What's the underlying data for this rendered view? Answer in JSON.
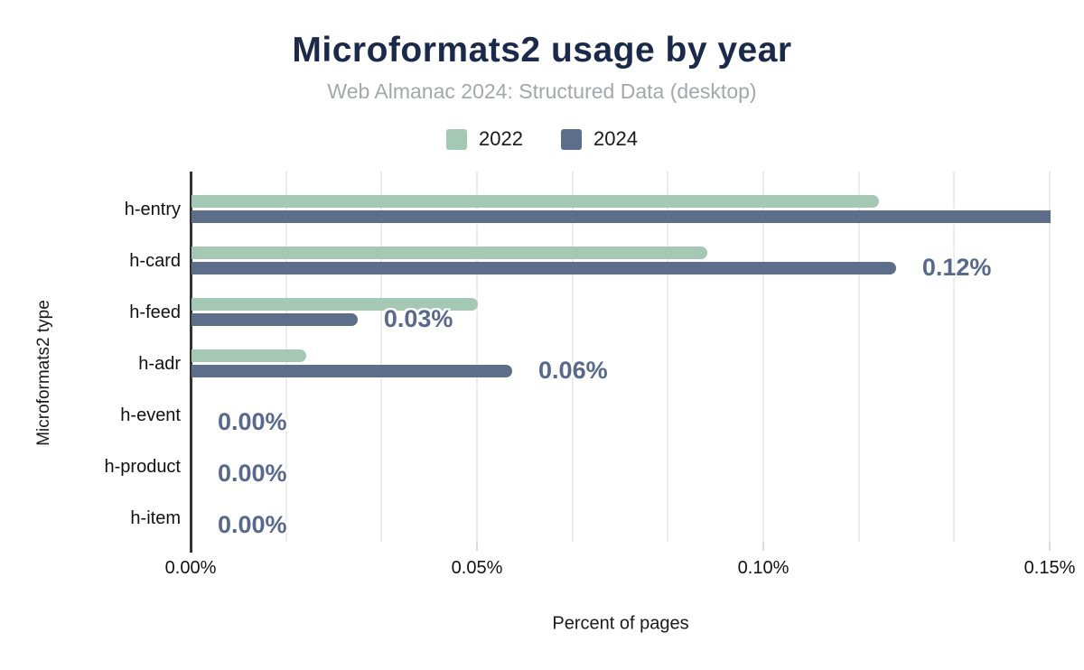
{
  "chart_data": {
    "type": "bar",
    "orientation": "horizontal",
    "title": "Microformats2 usage by year",
    "subtitle": "Web Almanac 2024: Structured Data (desktop)",
    "xlabel": "Percent of pages",
    "ylabel": "Microformats2 type",
    "categories": [
      "h-entry",
      "h-card",
      "h-feed",
      "h-adr",
      "h-event",
      "h-product",
      "h-item"
    ],
    "series": [
      {
        "name": "2022",
        "color": "#a5c8b4",
        "values": [
          0.12,
          0.09,
          0.05,
          0.02,
          0,
          0,
          0
        ]
      },
      {
        "name": "2024",
        "color": "#5c6e8a",
        "values": [
          0.15,
          0.123,
          0.029,
          0.056,
          0,
          0,
          0
        ]
      }
    ],
    "annotations": [
      {
        "category": "h-card",
        "series": "2024",
        "label": "0.12%"
      },
      {
        "category": "h-feed",
        "series": "2024",
        "label": "0.03%"
      },
      {
        "category": "h-adr",
        "series": "2024",
        "label": "0.06%"
      },
      {
        "category": "h-event",
        "series": "2024",
        "label": "0.00%"
      },
      {
        "category": "h-product",
        "series": "2024",
        "label": "0.00%"
      },
      {
        "category": "h-item",
        "series": "2024",
        "label": "0.00%"
      }
    ],
    "x_ticks": [
      "0.00%",
      "0.05%",
      "0.10%",
      "0.15%"
    ],
    "xlim": [
      0,
      0.15
    ],
    "grid": true,
    "legend_position": "top",
    "colors": {
      "title": "#1b2a4a",
      "subtitle": "#a5a7aa",
      "annotation": "#58698b",
      "gridline": "#ececec",
      "axis": "#333333"
    }
  }
}
